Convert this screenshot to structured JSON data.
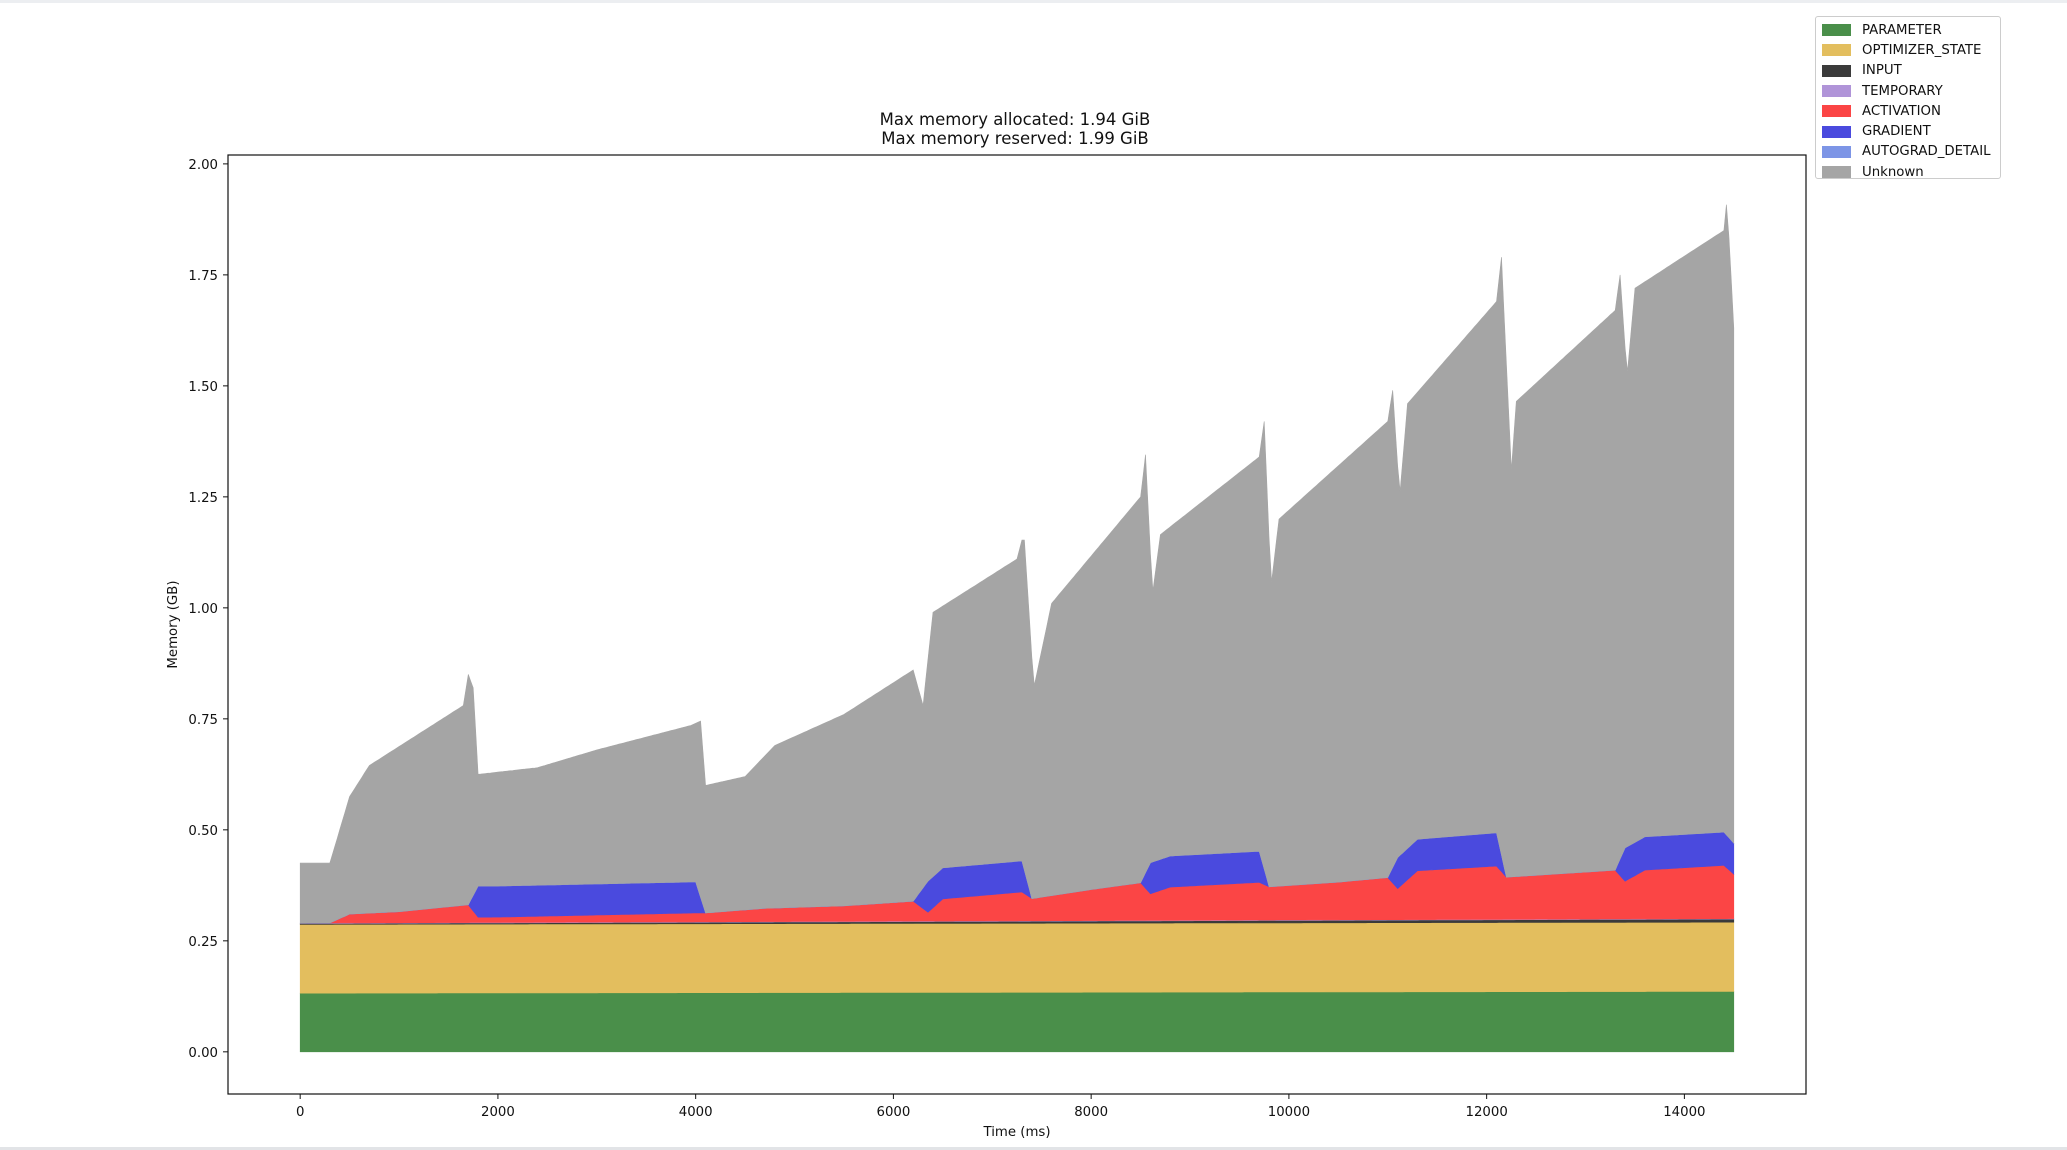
{
  "chart_data": {
    "type": "area",
    "title_lines": [
      "Max memory allocated: 1.94 GiB",
      "Max memory reserved: 1.99 GiB"
    ],
    "xlabel": "Time (ms)",
    "ylabel": "Memory (GB)",
    "xlim": [
      -730,
      15230
    ],
    "ylim": [
      -0.095,
      2.02
    ],
    "xticks": [
      0,
      2000,
      4000,
      6000,
      8000,
      10000,
      12000,
      14000
    ],
    "yticks": [
      0.0,
      0.25,
      0.5,
      0.75,
      1.0,
      1.25,
      1.5,
      1.75,
      2.0
    ],
    "ytick_labels": [
      "0.00",
      "0.25",
      "0.50",
      "0.75",
      "1.00",
      "1.25",
      "1.50",
      "1.75",
      "2.00"
    ],
    "grid": false,
    "legend_position": "outside-top-right",
    "x_end": 14500,
    "stacked": true,
    "series": [
      {
        "name": "PARAMETER",
        "color": "#4a8f4a",
        "points": [
          [
            0,
            0.132
          ],
          [
            14500,
            0.136
          ]
        ]
      },
      {
        "name": "OPTIMIZER_STATE",
        "color": "#e3be5e",
        "points": [
          [
            0,
            0.155
          ],
          [
            14500,
            0.156
          ]
        ]
      },
      {
        "name": "INPUT",
        "color": "#3b3b3b",
        "points": [
          [
            0,
            0.002
          ],
          [
            14500,
            0.007
          ]
        ]
      },
      {
        "name": "TEMPORARY",
        "color": "#b094d8",
        "points": [
          [
            0,
            0.001
          ],
          [
            14500,
            0.001
          ]
        ]
      },
      {
        "name": "ACTIVATION",
        "color": "#fb4545",
        "points": [
          [
            0,
            0.0
          ],
          [
            300,
            0.0
          ],
          [
            500,
            0.02
          ],
          [
            1000,
            0.025
          ],
          [
            1700,
            0.04
          ],
          [
            1800,
            0.012
          ],
          [
            2000,
            0.012
          ],
          [
            4000,
            0.02
          ],
          [
            4100,
            0.02
          ],
          [
            4700,
            0.03
          ],
          [
            5500,
            0.035
          ],
          [
            6200,
            0.045
          ],
          [
            6350,
            0.02
          ],
          [
            6500,
            0.05
          ],
          [
            7300,
            0.065
          ],
          [
            7400,
            0.05
          ],
          [
            8000,
            0.07
          ],
          [
            8500,
            0.085
          ],
          [
            8600,
            0.06
          ],
          [
            8800,
            0.075
          ],
          [
            9700,
            0.085
          ],
          [
            9800,
            0.075
          ],
          [
            10500,
            0.085
          ],
          [
            11000,
            0.095
          ],
          [
            11100,
            0.07
          ],
          [
            11300,
            0.11
          ],
          [
            12100,
            0.12
          ],
          [
            12200,
            0.095
          ],
          [
            13300,
            0.11
          ],
          [
            13400,
            0.085
          ],
          [
            13600,
            0.11
          ],
          [
            14400,
            0.12
          ],
          [
            14500,
            0.1
          ]
        ]
      },
      {
        "name": "GRADIENT",
        "color": "#4a4ade",
        "points": [
          [
            0,
            0.0
          ],
          [
            1700,
            0.0
          ],
          [
            1800,
            0.07
          ],
          [
            4000,
            0.07
          ],
          [
            4100,
            0.0
          ],
          [
            6200,
            0.0
          ],
          [
            6350,
            0.07
          ],
          [
            7300,
            0.07
          ],
          [
            7400,
            0.0
          ],
          [
            8500,
            0.0
          ],
          [
            8600,
            0.07
          ],
          [
            9700,
            0.07
          ],
          [
            9800,
            0.0
          ],
          [
            11000,
            0.0
          ],
          [
            11100,
            0.07
          ],
          [
            12100,
            0.075
          ],
          [
            12200,
            0.0
          ],
          [
            13300,
            0.0
          ],
          [
            13400,
            0.075
          ],
          [
            14400,
            0.075
          ],
          [
            14500,
            0.07
          ]
        ]
      },
      {
        "name": "AUTOGRAD_DETAIL",
        "color": "#7d95e6",
        "points": [
          [
            0,
            0.0
          ],
          [
            14500,
            0.0
          ]
        ]
      },
      {
        "name": "Unknown",
        "color": "#a5a5a5",
        "points": [
          [
            0,
            0.425
          ],
          [
            300,
            0.425
          ],
          [
            500,
            0.575
          ],
          [
            700,
            0.645
          ],
          [
            1650,
            0.78
          ],
          [
            1700,
            0.85
          ],
          [
            1750,
            0.82
          ],
          [
            1800,
            0.625
          ],
          [
            2400,
            0.64
          ],
          [
            3000,
            0.68
          ],
          [
            3950,
            0.735
          ],
          [
            4050,
            0.745
          ],
          [
            4100,
            0.6
          ],
          [
            4500,
            0.62
          ],
          [
            4800,
            0.69
          ],
          [
            5500,
            0.76
          ],
          [
            6200,
            0.86
          ],
          [
            6300,
            0.78
          ],
          [
            6400,
            0.99
          ],
          [
            7250,
            1.11
          ],
          [
            7320,
            1.17
          ],
          [
            7420,
            0.82
          ],
          [
            7600,
            1.01
          ],
          [
            8500,
            1.25
          ],
          [
            8550,
            1.345
          ],
          [
            8620,
            1.03
          ],
          [
            8700,
            1.165
          ],
          [
            9700,
            1.34
          ],
          [
            9750,
            1.42
          ],
          [
            9820,
            1.05
          ],
          [
            9900,
            1.2
          ],
          [
            11000,
            1.42
          ],
          [
            11050,
            1.49
          ],
          [
            11120,
            1.25
          ],
          [
            11200,
            1.46
          ],
          [
            12100,
            1.69
          ],
          [
            12150,
            1.79
          ],
          [
            12250,
            1.31
          ],
          [
            12300,
            1.465
          ],
          [
            13300,
            1.67
          ],
          [
            13350,
            1.75
          ],
          [
            13420,
            1.52
          ],
          [
            13500,
            1.72
          ],
          [
            14400,
            1.85
          ],
          [
            14430,
            1.92
          ],
          [
            14500,
            1.63
          ]
        ]
      }
    ]
  }
}
